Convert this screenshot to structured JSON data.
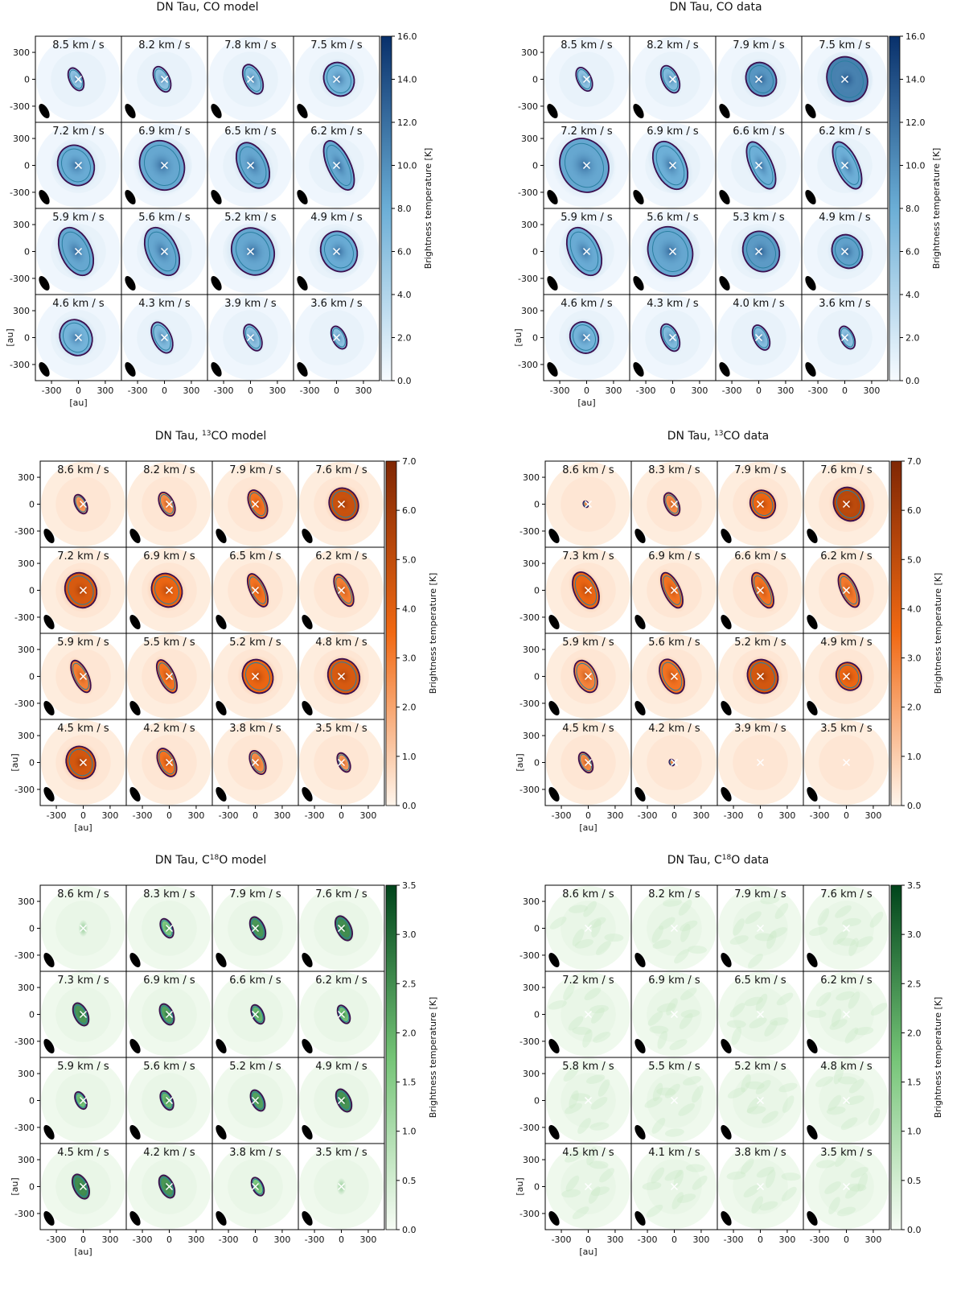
{
  "figure": {
    "axis_unit_label": "[au]",
    "axis_ticks": [
      "-300",
      "0",
      "300"
    ],
    "colorbar_label": "Brightness temperature [K]"
  },
  "chart_data": [
    {
      "type": "heatmap",
      "title": "DN Tau, CO model",
      "title_sup": "",
      "title_main": "DN Tau, CO model",
      "cmap": "blue",
      "colors": {
        "low": "#f7fbff",
        "mid": "#6baed6",
        "high": "#08306b"
      },
      "vmax": 16.0,
      "colorbar_ticks": [
        "0.0",
        "2.0",
        "4.0",
        "6.0",
        "8.0",
        "10.0",
        "12.0",
        "14.0",
        "16.0"
      ],
      "xlim": [
        -480,
        480
      ],
      "ylim": [
        -480,
        480
      ],
      "channels": [
        {
          "velocity": "8.5 km / s",
          "peak": 0.45,
          "size": 0.3,
          "shape": "arc"
        },
        {
          "velocity": "8.2 km / s",
          "peak": 0.45,
          "size": 0.36,
          "shape": "arc"
        },
        {
          "velocity": "7.8 km / s",
          "peak": 0.5,
          "size": 0.45,
          "shape": "arc"
        },
        {
          "velocity": "7.5 km / s",
          "peak": 0.55,
          "size": 0.55,
          "shape": "blob"
        },
        {
          "velocity": "7.2 km / s",
          "peak": 0.6,
          "size": 0.7,
          "shape": "blob"
        },
        {
          "velocity": "6.9 km / s",
          "peak": 0.62,
          "size": 0.9,
          "shape": "blob"
        },
        {
          "velocity": "6.5 km / s",
          "peak": 0.62,
          "size": 0.8,
          "shape": "kidney"
        },
        {
          "velocity": "6.2 km / s",
          "peak": 0.62,
          "size": 0.85,
          "shape": "elong"
        },
        {
          "velocity": "5.9 km / s",
          "peak": 0.62,
          "size": 0.85,
          "shape": "kidney"
        },
        {
          "velocity": "5.6 km / s",
          "peak": 0.62,
          "size": 0.85,
          "shape": "kidney"
        },
        {
          "velocity": "5.2 km / s",
          "peak": 0.62,
          "size": 0.85,
          "shape": "blob"
        },
        {
          "velocity": "4.9 km / s",
          "peak": 0.6,
          "size": 0.7,
          "shape": "blob"
        },
        {
          "velocity": "4.6 km / s",
          "peak": 0.55,
          "size": 0.6,
          "shape": "blob"
        },
        {
          "velocity": "4.3 km / s",
          "peak": 0.5,
          "size": 0.48,
          "shape": "arc"
        },
        {
          "velocity": "3.9 km / s",
          "peak": 0.45,
          "size": 0.38,
          "shape": "arc"
        },
        {
          "velocity": "3.6 km / s",
          "peak": 0.45,
          "size": 0.3,
          "shape": "arc"
        }
      ]
    },
    {
      "type": "heatmap",
      "title": "DN Tau, CO data",
      "title_sup": "",
      "title_main": "DN Tau, CO data",
      "cmap": "blue",
      "colors": {
        "low": "#f7fbff",
        "mid": "#6baed6",
        "high": "#08306b"
      },
      "vmax": 16.0,
      "colorbar_ticks": [
        "0.0",
        "2.0",
        "4.0",
        "6.0",
        "8.0",
        "10.0",
        "12.0",
        "14.0",
        "16.0"
      ],
      "xlim": [
        -480,
        480
      ],
      "ylim": [
        -480,
        480
      ],
      "channels": [
        {
          "velocity": "8.5 km / s",
          "peak": 0.45,
          "size": 0.32,
          "shape": "arc"
        },
        {
          "velocity": "8.2 km / s",
          "peak": 0.5,
          "size": 0.4,
          "shape": "arc"
        },
        {
          "velocity": "7.9 km / s",
          "peak": 0.7,
          "size": 0.55,
          "shape": "blob"
        },
        {
          "velocity": "7.5 km / s",
          "peak": 0.8,
          "size": 0.8,
          "shape": "blob"
        },
        {
          "velocity": "7.2 km / s",
          "peak": 0.62,
          "size": 1.0,
          "shape": "blob"
        },
        {
          "velocity": "6.9 km / s",
          "peak": 0.58,
          "size": 0.85,
          "shape": "kidney"
        },
        {
          "velocity": "6.6 km / s",
          "peak": 0.58,
          "size": 0.8,
          "shape": "elong"
        },
        {
          "velocity": "6.2 km / s",
          "peak": 0.58,
          "size": 0.8,
          "shape": "elong"
        },
        {
          "velocity": "5.9 km / s",
          "peak": 0.6,
          "size": 0.85,
          "shape": "kidney"
        },
        {
          "velocity": "5.6 km / s",
          "peak": 0.62,
          "size": 0.9,
          "shape": "blob"
        },
        {
          "velocity": "5.3 km / s",
          "peak": 0.68,
          "size": 0.7,
          "shape": "blob"
        },
        {
          "velocity": "4.9 km / s",
          "peak": 0.65,
          "size": 0.55,
          "shape": "blob"
        },
        {
          "velocity": "4.6 km / s",
          "peak": 0.55,
          "size": 0.5,
          "shape": "blob"
        },
        {
          "velocity": "4.3 km / s",
          "peak": 0.5,
          "size": 0.4,
          "shape": "arc"
        },
        {
          "velocity": "4.0 km / s",
          "peak": 0.48,
          "size": 0.35,
          "shape": "arc"
        },
        {
          "velocity": "3.6 km / s",
          "peak": 0.45,
          "size": 0.3,
          "shape": "arc"
        }
      ]
    },
    {
      "type": "heatmap",
      "title": "DN Tau, 13CO model",
      "title_sup": "13",
      "title_main": "CO model",
      "cmap": "orange",
      "colors": {
        "low": "#fff5eb",
        "mid": "#f16913",
        "high": "#7f2704"
      },
      "vmax": 7.0,
      "colorbar_ticks": [
        "0.0",
        "1.0",
        "2.0",
        "3.0",
        "4.0",
        "5.0",
        "6.0",
        "7.0"
      ],
      "xlim": [
        -480,
        480
      ],
      "ylim": [
        -480,
        480
      ],
      "channels": [
        {
          "velocity": "8.6 km / s",
          "peak": 0.4,
          "size": 0.22,
          "shape": "arc"
        },
        {
          "velocity": "8.2 km / s",
          "peak": 0.45,
          "size": 0.32,
          "shape": "arc"
        },
        {
          "velocity": "7.9 km / s",
          "peak": 0.55,
          "size": 0.42,
          "shape": "arc"
        },
        {
          "velocity": "7.6 km / s",
          "peak": 0.8,
          "size": 0.52,
          "shape": "blob"
        },
        {
          "velocity": "7.2 km / s",
          "peak": 0.72,
          "size": 0.58,
          "shape": "blob"
        },
        {
          "velocity": "6.9 km / s",
          "peak": 0.62,
          "size": 0.55,
          "shape": "blob"
        },
        {
          "velocity": "6.5 km / s",
          "peak": 0.55,
          "size": 0.5,
          "shape": "elong"
        },
        {
          "velocity": "6.2 km / s",
          "peak": 0.5,
          "size": 0.48,
          "shape": "elong"
        },
        {
          "velocity": "5.9 km / s",
          "peak": 0.5,
          "size": 0.48,
          "shape": "elong"
        },
        {
          "velocity": "5.5 km / s",
          "peak": 0.55,
          "size": 0.5,
          "shape": "elong"
        },
        {
          "velocity": "5.2 km / s",
          "peak": 0.62,
          "size": 0.55,
          "shape": "blob"
        },
        {
          "velocity": "4.8 km / s",
          "peak": 0.72,
          "size": 0.58,
          "shape": "blob"
        },
        {
          "velocity": "4.5 km / s",
          "peak": 0.75,
          "size": 0.52,
          "shape": "blob"
        },
        {
          "velocity": "4.2 km / s",
          "peak": 0.55,
          "size": 0.42,
          "shape": "arc"
        },
        {
          "velocity": "3.8 km / s",
          "peak": 0.45,
          "size": 0.32,
          "shape": "arc"
        },
        {
          "velocity": "3.5 km / s",
          "peak": 0.4,
          "size": 0.22,
          "shape": "arc"
        }
      ]
    },
    {
      "type": "heatmap",
      "title": "DN Tau, 13CO data",
      "title_sup": "13",
      "title_main": "CO data",
      "cmap": "orange",
      "colors": {
        "low": "#fff5eb",
        "mid": "#f16913",
        "high": "#7f2704"
      },
      "vmax": 7.0,
      "colorbar_ticks": [
        "0.0",
        "1.0",
        "2.0",
        "3.0",
        "4.0",
        "5.0",
        "6.0",
        "7.0"
      ],
      "xlim": [
        -480,
        480
      ],
      "ylim": [
        -480,
        480
      ],
      "channels": [
        {
          "velocity": "8.6 km / s",
          "peak": 0.4,
          "size": 0.12,
          "shape": "dot"
        },
        {
          "velocity": "8.3 km / s",
          "peak": 0.45,
          "size": 0.3,
          "shape": "arc"
        },
        {
          "velocity": "7.9 km / s",
          "peak": 0.62,
          "size": 0.42,
          "shape": "blob"
        },
        {
          "velocity": "7.6 km / s",
          "peak": 0.88,
          "size": 0.55,
          "shape": "blob"
        },
        {
          "velocity": "7.3 km / s",
          "peak": 0.62,
          "size": 0.6,
          "shape": "kidney"
        },
        {
          "velocity": "6.9 km / s",
          "peak": 0.55,
          "size": 0.55,
          "shape": "elong"
        },
        {
          "velocity": "6.6 km / s",
          "peak": 0.55,
          "size": 0.55,
          "shape": "elong"
        },
        {
          "velocity": "6.2 km / s",
          "peak": 0.52,
          "size": 0.52,
          "shape": "elong"
        },
        {
          "velocity": "5.9 km / s",
          "peak": 0.48,
          "size": 0.5,
          "shape": "kidney"
        },
        {
          "velocity": "5.6 km / s",
          "peak": 0.55,
          "size": 0.55,
          "shape": "kidney"
        },
        {
          "velocity": "5.2 km / s",
          "peak": 0.75,
          "size": 0.55,
          "shape": "blob"
        },
        {
          "velocity": "4.9 km / s",
          "peak": 0.62,
          "size": 0.42,
          "shape": "blob"
        },
        {
          "velocity": "4.5 km / s",
          "peak": 0.45,
          "size": 0.25,
          "shape": "arc"
        },
        {
          "velocity": "4.2 km / s",
          "peak": 0.4,
          "size": 0.1,
          "shape": "dot"
        },
        {
          "velocity": "3.9 km / s",
          "peak": 0.0,
          "size": 0.0,
          "shape": "none"
        },
        {
          "velocity": "3.5 km / s",
          "peak": 0.0,
          "size": 0.0,
          "shape": "none"
        }
      ]
    },
    {
      "type": "heatmap",
      "title": "DN Tau, C18O model",
      "title_sup": "18",
      "title_main": "O model",
      "cmap": "green",
      "colors": {
        "low": "#f7fcf5",
        "mid": "#74c476",
        "high": "#00441b"
      },
      "vmax": 3.5,
      "colorbar_ticks": [
        "0.0",
        "0.5",
        "1.0",
        "1.5",
        "2.0",
        "2.5",
        "3.0",
        "3.5"
      ],
      "xlim": [
        -480,
        480
      ],
      "ylim": [
        -480,
        480
      ],
      "channels": [
        {
          "velocity": "8.6 km / s",
          "peak": 0.2,
          "size": 0.2,
          "shape": "faint"
        },
        {
          "velocity": "8.3 km / s",
          "peak": 0.55,
          "size": 0.22,
          "shape": "arc"
        },
        {
          "velocity": "7.9 km / s",
          "peak": 0.8,
          "size": 0.3,
          "shape": "arc"
        },
        {
          "velocity": "7.6 km / s",
          "peak": 0.85,
          "size": 0.34,
          "shape": "arc"
        },
        {
          "velocity": "7.3 km / s",
          "peak": 0.8,
          "size": 0.3,
          "shape": "arc"
        },
        {
          "velocity": "6.9 km / s",
          "peak": 0.75,
          "size": 0.26,
          "shape": "arc"
        },
        {
          "velocity": "6.6 km / s",
          "peak": 0.65,
          "size": 0.22,
          "shape": "arc"
        },
        {
          "velocity": "6.2 km / s",
          "peak": 0.6,
          "size": 0.2,
          "shape": "arc"
        },
        {
          "velocity": "5.9 km / s",
          "peak": 0.6,
          "size": 0.18,
          "shape": "arc"
        },
        {
          "velocity": "5.6 km / s",
          "peak": 0.65,
          "size": 0.22,
          "shape": "arc"
        },
        {
          "velocity": "5.2 km / s",
          "peak": 0.75,
          "size": 0.26,
          "shape": "arc"
        },
        {
          "velocity": "4.9 km / s",
          "peak": 0.82,
          "size": 0.3,
          "shape": "arc"
        },
        {
          "velocity": "4.5 km / s",
          "peak": 0.85,
          "size": 0.34,
          "shape": "arc"
        },
        {
          "velocity": "4.2 km / s",
          "peak": 0.8,
          "size": 0.3,
          "shape": "arc"
        },
        {
          "velocity": "3.8 km / s",
          "peak": 0.55,
          "size": 0.2,
          "shape": "arc"
        },
        {
          "velocity": "3.5 km / s",
          "peak": 0.2,
          "size": 0.2,
          "shape": "faint"
        }
      ]
    },
    {
      "type": "heatmap",
      "title": "DN Tau, C18O data",
      "title_sup": "18",
      "title_main": "O data",
      "cmap": "green",
      "colors": {
        "low": "#f7fcf5",
        "mid": "#74c476",
        "high": "#00441b"
      },
      "vmax": 3.5,
      "colorbar_ticks": [
        "0.0",
        "0.5",
        "1.0",
        "1.5",
        "2.0",
        "2.5",
        "3.0",
        "3.5"
      ],
      "xlim": [
        -480,
        480
      ],
      "ylim": [
        -480,
        480
      ],
      "channels": [
        {
          "velocity": "8.6 km / s",
          "peak": 0.0,
          "size": 0.0,
          "shape": "noise"
        },
        {
          "velocity": "8.2 km / s",
          "peak": 0.0,
          "size": 0.0,
          "shape": "noise"
        },
        {
          "velocity": "7.9 km / s",
          "peak": 0.0,
          "size": 0.0,
          "shape": "noise"
        },
        {
          "velocity": "7.6 km / s",
          "peak": 0.0,
          "size": 0.0,
          "shape": "noise"
        },
        {
          "velocity": "7.2 km / s",
          "peak": 0.0,
          "size": 0.0,
          "shape": "noise"
        },
        {
          "velocity": "6.9 km / s",
          "peak": 0.0,
          "size": 0.0,
          "shape": "noise"
        },
        {
          "velocity": "6.5 km / s",
          "peak": 0.0,
          "size": 0.0,
          "shape": "noise"
        },
        {
          "velocity": "6.2 km / s",
          "peak": 0.0,
          "size": 0.0,
          "shape": "noise"
        },
        {
          "velocity": "5.8 km / s",
          "peak": 0.0,
          "size": 0.0,
          "shape": "noise"
        },
        {
          "velocity": "5.5 km / s",
          "peak": 0.0,
          "size": 0.0,
          "shape": "noise"
        },
        {
          "velocity": "5.2 km / s",
          "peak": 0.0,
          "size": 0.0,
          "shape": "noise"
        },
        {
          "velocity": "4.8 km / s",
          "peak": 0.0,
          "size": 0.0,
          "shape": "noise"
        },
        {
          "velocity": "4.5 km / s",
          "peak": 0.0,
          "size": 0.0,
          "shape": "noise"
        },
        {
          "velocity": "4.1 km / s",
          "peak": 0.0,
          "size": 0.0,
          "shape": "noise"
        },
        {
          "velocity": "3.8 km / s",
          "peak": 0.0,
          "size": 0.0,
          "shape": "noise"
        },
        {
          "velocity": "3.5 km / s",
          "peak": 0.0,
          "size": 0.0,
          "shape": "noise"
        }
      ]
    }
  ]
}
